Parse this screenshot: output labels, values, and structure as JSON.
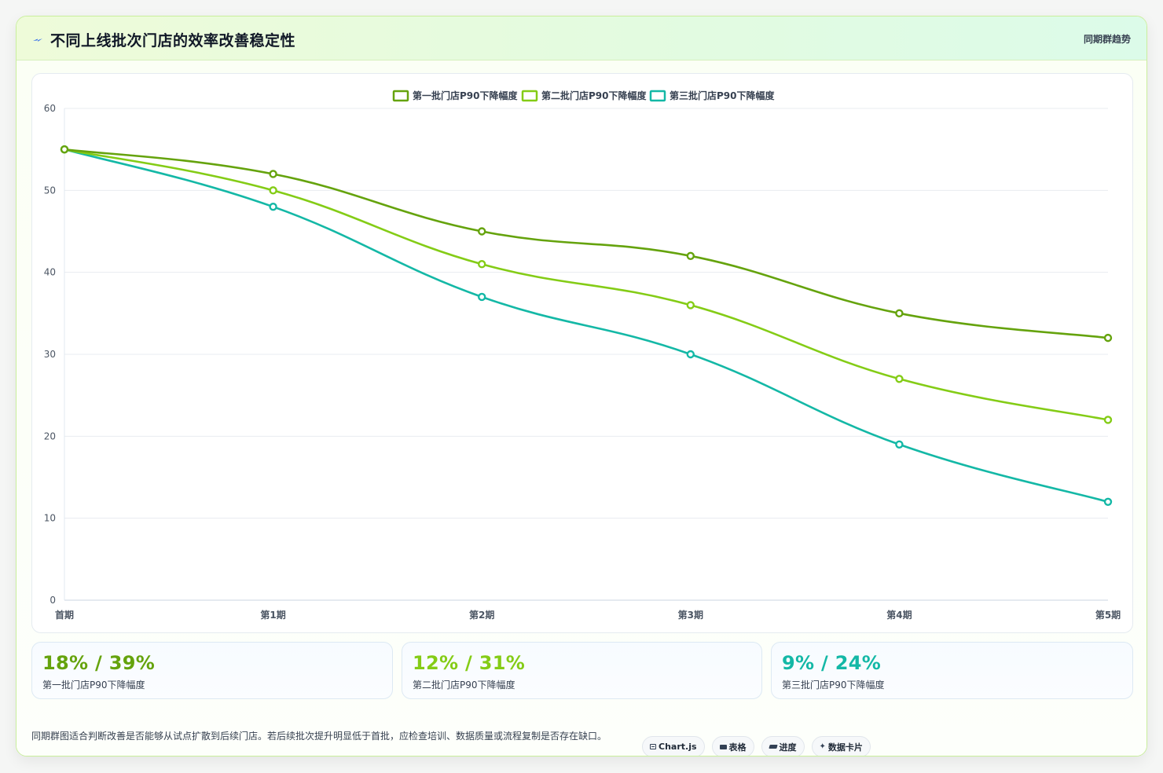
{
  "header": {
    "title": "不同上线批次门店的效率改善稳定性",
    "tag": "同期群趋势",
    "icon": "lightning-icon"
  },
  "colors": {
    "series1": "#65a30d",
    "series2": "#84cc16",
    "series3": "#14b8a6"
  },
  "chart_data": {
    "type": "line",
    "x": [
      "首期",
      "第1期",
      "第2期",
      "第3期",
      "第4期",
      "第5期"
    ],
    "series": [
      {
        "name": "第一批门店P90下降幅度",
        "values": [
          55,
          52,
          45,
          42,
          35,
          32
        ]
      },
      {
        "name": "第二批门店P90下降幅度",
        "values": [
          55,
          50,
          41,
          36,
          27,
          22
        ]
      },
      {
        "name": "第三批门店P90下降幅度",
        "values": [
          55,
          48,
          37,
          30,
          19,
          12
        ]
      }
    ],
    "ylim": [
      0,
      60
    ],
    "yticks": [
      0,
      10,
      20,
      30,
      40,
      50,
      60
    ],
    "grid": true,
    "legend": "top-center",
    "title": "",
    "xlabel": "",
    "ylabel": ""
  },
  "stats": [
    {
      "value": "18% / 39%",
      "label": "第一批门店P90下降幅度"
    },
    {
      "value": "12% / 31%",
      "label": "第二批门店P90下降幅度"
    },
    {
      "value": "9% / 24%",
      "label": "第三批门店P90下降幅度"
    }
  ],
  "note": "同期群图适合判断改善是否能够从试点扩散到后续门店。若后续批次提升明显低于首批，应检查培训、数据质量或流程复制是否存在缺口。",
  "chips": [
    {
      "label": "Chart.js",
      "icon": "chart-window-icon"
    },
    {
      "label": "表格",
      "icon": "table-icon"
    },
    {
      "label": "进度",
      "icon": "progress-icon"
    },
    {
      "label": "数据卡片",
      "icon": "sparkle-icon"
    }
  ]
}
